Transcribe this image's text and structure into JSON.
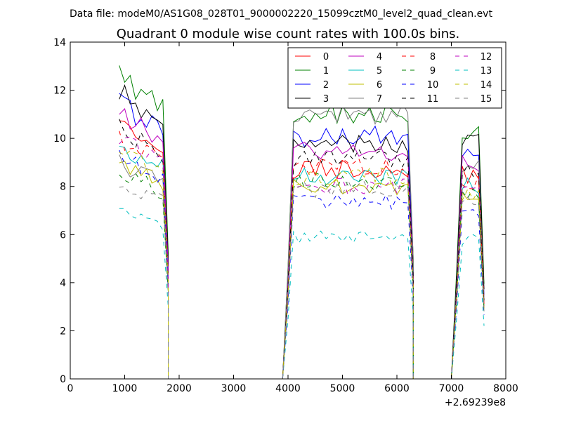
{
  "chart_data": {
    "type": "line",
    "suptitle": "Data file: modeM0/AS1G08_028T01_9000002220_15099cztM0_level2_quad_clean.evt",
    "title": "Quadrant 0 module wise count rates with 100.0s bins.",
    "xlabel": "",
    "ylabel": "",
    "x_offset_label": "+2.69239e8",
    "xlim": [
      0,
      8000
    ],
    "ylim": [
      0,
      14
    ],
    "xticks": [
      0,
      1000,
      2000,
      3000,
      4000,
      5000,
      6000,
      7000,
      8000
    ],
    "yticks": [
      0,
      2,
      4,
      6,
      8,
      10,
      12,
      14
    ],
    "grid": false,
    "legend_placement": "top-right",
    "segments": [
      [
        900,
        1800
      ],
      [
        4000,
        6300
      ],
      [
        7100,
        7600
      ]
    ],
    "gap_x": [
      1800,
      1900,
      2000,
      3000,
      3900,
      4000,
      6300,
      6400,
      7000
    ],
    "colors": [
      "#ff0000",
      "#008000",
      "#0000ff",
      "#000000",
      "#bf00bf",
      "#00bfbf",
      "#bfbf00",
      "#808080"
    ],
    "series": [
      {
        "name": "0",
        "level": [
          9.9,
          8.7,
          8.5
        ],
        "style": "solid"
      },
      {
        "name": "1",
        "level": [
          11.6,
          11.1,
          10.4
        ],
        "style": "solid"
      },
      {
        "name": "2",
        "level": [
          10.6,
          10.1,
          9.2
        ],
        "style": "solid"
      },
      {
        "name": "3",
        "level": [
          11.0,
          9.8,
          9.8
        ],
        "style": "solid"
      },
      {
        "name": "4",
        "level": [
          10.2,
          9.5,
          8.9
        ],
        "style": "solid"
      },
      {
        "name": "5",
        "level": [
          9.0,
          8.4,
          8.0
        ],
        "style": "solid"
      },
      {
        "name": "6",
        "level": [
          8.4,
          8.0,
          7.8
        ],
        "style": "solid"
      },
      {
        "name": "7",
        "level": [
          8.3,
          11.0,
          8.8
        ],
        "style": "solid"
      },
      {
        "name": "8",
        "level": [
          9.3,
          8.8,
          8.2
        ],
        "style": "dashed"
      },
      {
        "name": "9",
        "level": [
          8.0,
          8.2,
          7.6
        ],
        "style": "dashed"
      },
      {
        "name": "10",
        "level": [
          8.5,
          7.4,
          7.0
        ],
        "style": "dashed"
      },
      {
        "name": "11",
        "level": [
          9.6,
          9.2,
          8.6
        ],
        "style": "dashed"
      },
      {
        "name": "12",
        "level": [
          9.2,
          8.0,
          7.9
        ],
        "style": "dashed"
      },
      {
        "name": "13",
        "level": [
          6.6,
          5.9,
          5.8
        ],
        "style": "dashed"
      },
      {
        "name": "14",
        "level": [
          8.9,
          8.4,
          7.7
        ],
        "style": "dashed"
      },
      {
        "name": "15",
        "level": [
          7.6,
          7.9,
          7.4
        ],
        "style": "dashed"
      }
    ]
  }
}
